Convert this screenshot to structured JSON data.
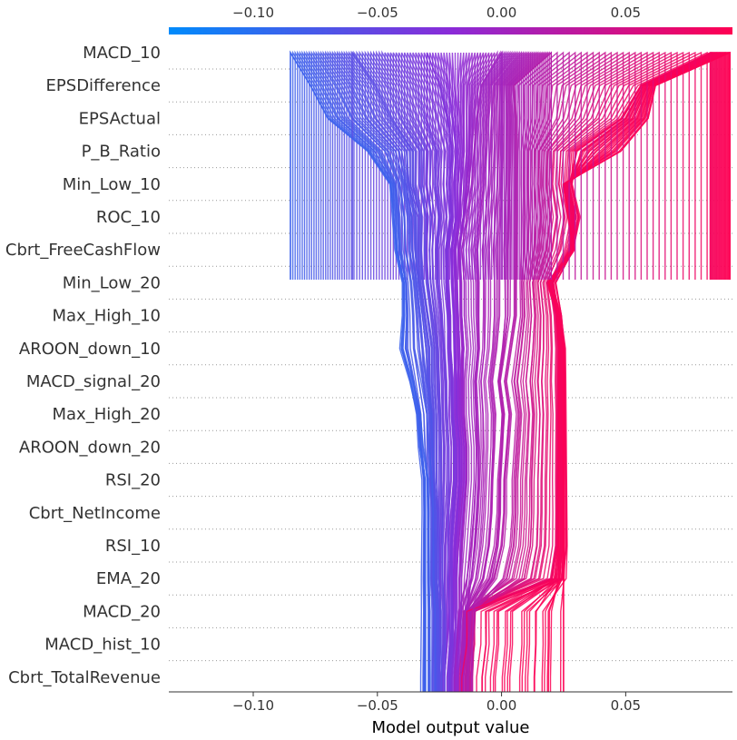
{
  "chart_data": {
    "type": "line",
    "xlabel": "Model output value",
    "xlim": [
      -0.134,
      0.093
    ],
    "x_ticks": [
      "−0.10",
      "−0.05",
      "0.00",
      "0.05"
    ],
    "x_tick_values": [
      -0.1,
      -0.05,
      0.0,
      0.05
    ],
    "features": [
      "MACD_10",
      "EPSDifference",
      "EPSActual",
      "P_B_Ratio",
      "Min_Low_10",
      "ROC_10",
      "Cbrt_FreeCashFlow",
      "Min_Low_20",
      "Max_High_10",
      "AROON_down_10",
      "MACD_signal_20",
      "Max_High_20",
      "AROON_down_20",
      "RSI_20",
      "Cbrt_NetIncome",
      "RSI_10",
      "EMA_20",
      "MACD_20",
      "MACD_hist_10",
      "Cbrt_TotalRevenue"
    ],
    "colorscale": {
      "low": "#008bfb",
      "mid": "#8a2bd8",
      "high": "#ff0052",
      "range": [
        -0.134,
        0.093
      ]
    },
    "grid": "dotted-horizontal",
    "series_profiles": [
      {
        "name": "",
        "values": [
          0.092,
          0.062,
          0.059,
          0.048,
          0.025,
          0.027,
          0.029,
          0.019,
          0.023,
          0.025,
          0.025,
          0.025,
          0.025,
          0.025,
          0.025,
          0.025,
          0.025,
          0.025,
          0.025,
          0.025
        ]
      },
      {
        "name": "",
        "values": [
          0.084,
          0.056,
          0.048,
          0.029,
          0.028,
          0.031,
          0.028,
          0.021,
          0.023,
          0.024,
          0.024,
          0.024,
          0.024,
          0.024,
          0.024,
          0.024,
          0.022,
          -0.014,
          -0.014,
          -0.016
        ]
      },
      {
        "name": "",
        "values": [
          0.02,
          0.005,
          0.006,
          0.006,
          0.006,
          0.006,
          0.006,
          0.006,
          0.006,
          0.004,
          0.002,
          0.004,
          0.003,
          0.002,
          0.002,
          0.001,
          -0.002,
          -0.012,
          -0.013,
          -0.013
        ]
      },
      {
        "name": "",
        "values": [
          0.0,
          -0.008,
          -0.01,
          -0.011,
          -0.012,
          -0.014,
          -0.016,
          -0.015,
          -0.015,
          -0.014,
          -0.015,
          -0.015,
          -0.014,
          -0.014,
          -0.015,
          -0.016,
          -0.017,
          -0.017,
          -0.018,
          -0.019
        ]
      },
      {
        "name": "",
        "values": [
          -0.03,
          -0.025,
          -0.022,
          -0.02,
          -0.021,
          -0.02,
          -0.022,
          -0.022,
          -0.021,
          -0.021,
          -0.02,
          -0.02,
          -0.019,
          -0.019,
          -0.02,
          -0.021,
          -0.021,
          -0.021,
          -0.021,
          -0.022
        ]
      },
      {
        "name": "",
        "values": [
          -0.06,
          -0.051,
          -0.045,
          -0.036,
          -0.036,
          -0.033,
          -0.033,
          -0.032,
          -0.03,
          -0.028,
          -0.028,
          -0.027,
          -0.027,
          -0.027,
          -0.026,
          -0.026,
          -0.026,
          -0.025,
          -0.025,
          -0.025
        ]
      },
      {
        "name": "",
        "values": [
          -0.085,
          -0.077,
          -0.07,
          -0.054,
          -0.045,
          -0.044,
          -0.043,
          -0.04,
          -0.04,
          -0.041,
          -0.037,
          -0.034,
          -0.033,
          -0.031,
          -0.031,
          -0.031,
          -0.031,
          -0.031,
          -0.031,
          -0.031
        ]
      }
    ]
  }
}
